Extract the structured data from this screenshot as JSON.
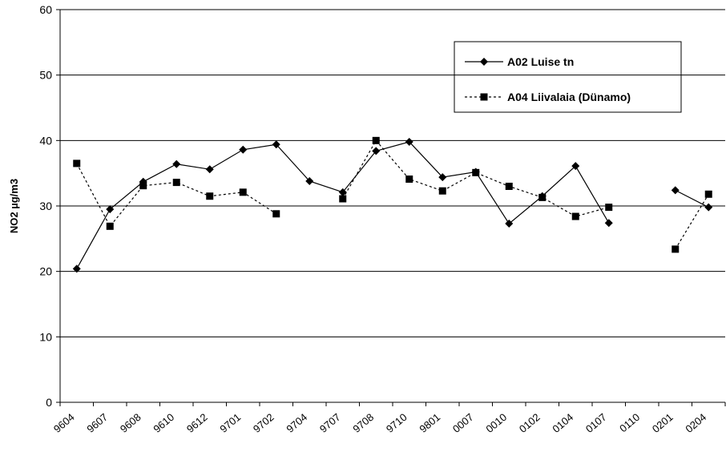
{
  "chart_data": {
    "type": "line",
    "y_label": "NO2 µg/m3",
    "categories": [
      "9604",
      "9607",
      "9608",
      "9610",
      "9612",
      "9701",
      "9702",
      "9704",
      "9707",
      "9708",
      "9710",
      "9801",
      "0007",
      "0010",
      "0102",
      "0104",
      "0107",
      "0110",
      "0201",
      "0204"
    ],
    "series": [
      {
        "name": "A02 Luise tn",
        "color": "#000000",
        "line_style": "solid",
        "marker": "diamond",
        "values": [
          20.4,
          29.5,
          33.7,
          36.4,
          35.6,
          38.6,
          39.4,
          33.8,
          32.1,
          38.4,
          39.8,
          34.4,
          35.2,
          27.3,
          31.5,
          36.1,
          27.4,
          null,
          32.4,
          29.8
        ]
      },
      {
        "name": "A04 Liivalaia (Dünamo)",
        "color": "#000000",
        "line_style": "dotted",
        "marker": "square",
        "values": [
          36.5,
          26.9,
          33.1,
          33.6,
          31.5,
          32.1,
          28.8,
          null,
          31.1,
          40.0,
          34.1,
          32.3,
          35.1,
          33.0,
          31.3,
          28.4,
          29.8,
          null,
          23.4,
          31.8
        ]
      }
    ],
    "ylim": [
      0,
      60
    ],
    "yticks": [
      0,
      10,
      20,
      30,
      40,
      50,
      60
    ],
    "grid": true
  }
}
